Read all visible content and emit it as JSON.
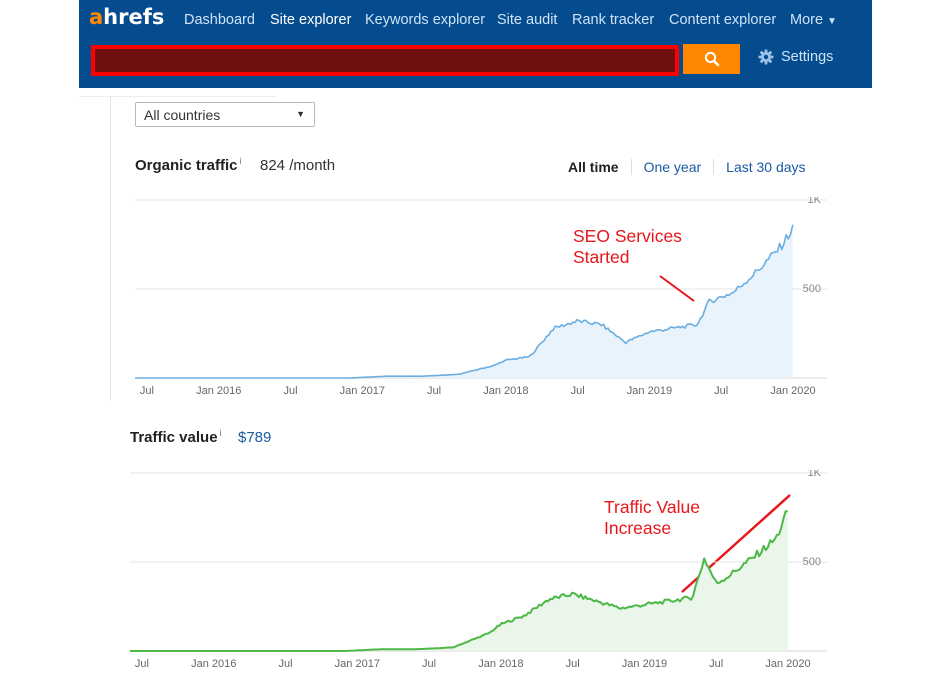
{
  "header": {
    "logo_prefix": "a",
    "logo_rest": "hrefs",
    "nav": [
      "Dashboard",
      "Site explorer",
      "Keywords explorer",
      "Site audit",
      "Rank tracker",
      "Content explorer",
      "More"
    ],
    "active_nav": "Site explorer",
    "settings_label": "Settings"
  },
  "filters": {
    "country": "All countries"
  },
  "organic": {
    "title": "Organic traffic",
    "info": "i",
    "value": "824 /month"
  },
  "range_tabs": [
    "All time",
    "One year",
    "Last 30 days"
  ],
  "active_range": "All time",
  "traffic_value": {
    "title": "Traffic value",
    "info": "i",
    "value": "$789"
  },
  "annotations": {
    "seo": "SEO Services\nStarted",
    "value": "Traffic Value\nIncrease"
  },
  "colors": {
    "header_bg": "#054c8f",
    "accent_orange": "#ff8800",
    "organic_line": "#6aaee0",
    "value_line": "#4cb848",
    "annotation": "#e8151a"
  },
  "chart_data": [
    {
      "type": "area",
      "xlabels": [
        "Jul",
        "Jan 2016",
        "Jul",
        "Jan 2017",
        "Jul",
        "Jan 2018",
        "Jul",
        "Jan 2019",
        "Jul",
        "Jan 2020"
      ],
      "yticks": [
        "500",
        "1K"
      ],
      "ylim": [
        0,
        1000
      ],
      "grid": true,
      "x": [
        "2015-06",
        "2015-12",
        "2016-06",
        "2016-12",
        "2017-03",
        "2017-06",
        "2017-09",
        "2017-12",
        "2018-01",
        "2018-03",
        "2018-05",
        "2018-07",
        "2018-09",
        "2018-11",
        "2019-01",
        "2019-03",
        "2019-05",
        "2019-06",
        "2019-08",
        "2019-10",
        "2019-12",
        "2020-01"
      ],
      "values": [
        0,
        0,
        0,
        0,
        10,
        10,
        20,
        70,
        100,
        120,
        280,
        320,
        300,
        200,
        260,
        280,
        300,
        430,
        480,
        600,
        740,
        840
      ]
    },
    {
      "type": "area",
      "xlabels": [
        "Jul",
        "Jan 2016",
        "Jul",
        "Jan 2017",
        "Jul",
        "Jan 2018",
        "Jul",
        "Jan 2019",
        "Jul",
        "Jan 2020"
      ],
      "yticks": [
        "500",
        "1K"
      ],
      "ylim": [
        0,
        1000
      ],
      "grid": true,
      "x": [
        "2015-06",
        "2015-12",
        "2016-06",
        "2016-12",
        "2017-03",
        "2017-06",
        "2017-09",
        "2017-12",
        "2018-01",
        "2018-03",
        "2018-05",
        "2018-07",
        "2018-09",
        "2018-11",
        "2019-01",
        "2019-03",
        "2019-05",
        "2019-06",
        "2019-07",
        "2019-08",
        "2019-10",
        "2019-12",
        "2020-01"
      ],
      "values": [
        0,
        0,
        0,
        0,
        10,
        10,
        20,
        100,
        150,
        200,
        290,
        320,
        280,
        240,
        260,
        280,
        300,
        520,
        380,
        420,
        520,
        630,
        790
      ]
    }
  ]
}
